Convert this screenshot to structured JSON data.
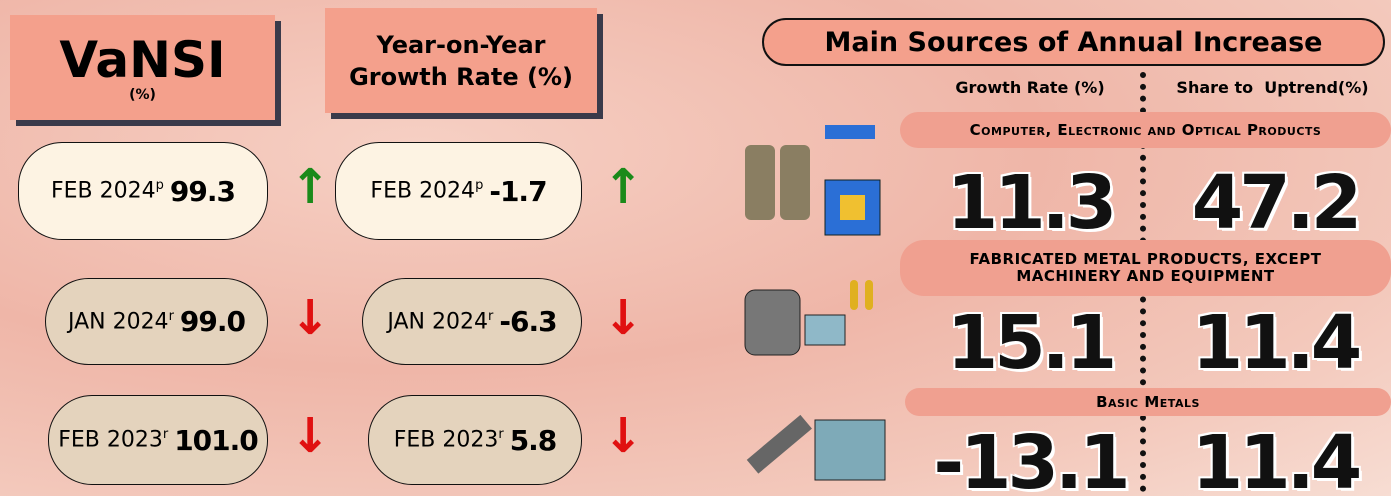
{
  "left": {
    "vansi_title": "VaNSI",
    "vansi_unit": "(%)",
    "yoy_title": "Year-on-Year Growth Rate (%)",
    "rows": [
      {
        "period": "FEB 2024",
        "mark": "p",
        "vansi": "99.3",
        "yoy": "-1.7"
      },
      {
        "period": "JAN 2024",
        "mark": "r",
        "vansi": "99.0",
        "yoy": "-6.3"
      },
      {
        "period": "FEB 2023",
        "mark": "r",
        "vansi": "101.0",
        "yoy": "5.8"
      }
    ]
  },
  "right": {
    "title": "Main Sources of Annual Increase",
    "col1": "Growth Rate (%)",
    "col2": "Share to  Uptrend(%)",
    "sectors": [
      {
        "name": "Computer, Electronic and Optical Products",
        "growth": "11.3",
        "share": "47.2"
      },
      {
        "name": "FABRICATED METAL PRODUCTS, EXCEPT MACHINERY AND EQUIPMENT",
        "growth": "15.1",
        "share": "11.4"
      },
      {
        "name": "Basic Metals",
        "growth": "-13.1",
        "share": "11.4"
      }
    ]
  }
}
